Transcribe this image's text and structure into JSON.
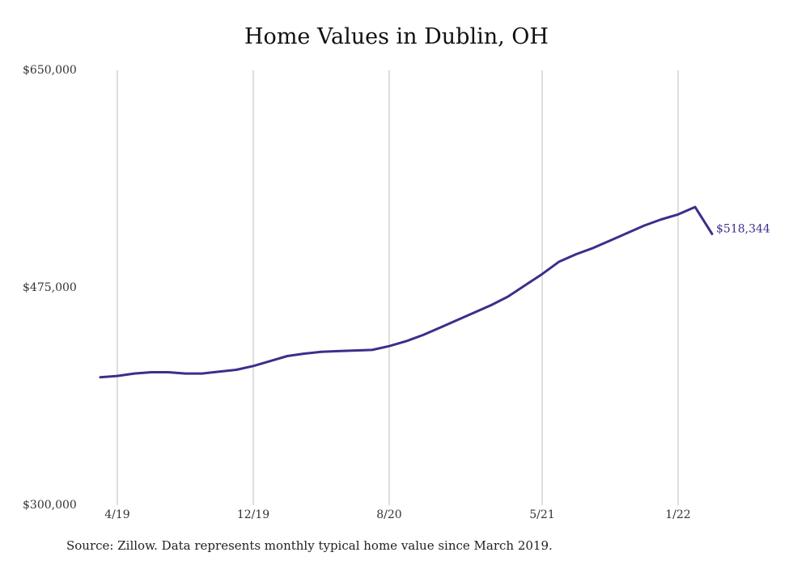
{
  "chart_data": {
    "type": "line",
    "title": "Home Values in Dublin, OH",
    "xlabel": "",
    "ylabel": "",
    "ylim": [
      300000,
      650000
    ],
    "y_ticks": [
      {
        "value": 650000,
        "label": "$650,000"
      },
      {
        "value": 475000,
        "label": "$475,000"
      },
      {
        "value": 300000,
        "label": "$300,000"
      }
    ],
    "x_ticks": [
      {
        "date": "2019-04",
        "label": "4/19"
      },
      {
        "date": "2019-12",
        "label": "12/19"
      },
      {
        "date": "2020-08",
        "label": "8/20"
      },
      {
        "date": "2021-05",
        "label": "5/21"
      },
      {
        "date": "2022-01",
        "label": "1/22"
      }
    ],
    "grid": "vertical",
    "line_color": "#3b2f8a",
    "series": [
      {
        "x": [
          "2019-03",
          "2019-04",
          "2019-05",
          "2019-06",
          "2019-07",
          "2019-08",
          "2019-09",
          "2019-10",
          "2019-11",
          "2019-12",
          "2020-01",
          "2020-02",
          "2020-03",
          "2020-04",
          "2020-05",
          "2020-06",
          "2020-07",
          "2020-08",
          "2020-09",
          "2020-10",
          "2020-11",
          "2020-12",
          "2021-01",
          "2021-02",
          "2021-03",
          "2021-04",
          "2021-05",
          "2021-06",
          "2021-07",
          "2021-08",
          "2021-09",
          "2021-10",
          "2021-11",
          "2021-12",
          "2022-01",
          "2022-02",
          "2022-03"
        ],
        "values": [
          403000,
          404000,
          406000,
          407000,
          407000,
          406000,
          406000,
          407500,
          409000,
          412000,
          416000,
          420000,
          422000,
          423500,
          424000,
          424500,
          425000,
          428000,
          432000,
          437000,
          443000,
          449000,
          455000,
          461000,
          468000,
          477000,
          486000,
          496000,
          502000,
          507000,
          513000,
          519000,
          525000,
          530000,
          534000,
          540000,
          518344
        ]
      }
    ],
    "end_label": "$518,344"
  },
  "source_note": "Source: Zillow. Data represents monthly typical home value since March 2019."
}
